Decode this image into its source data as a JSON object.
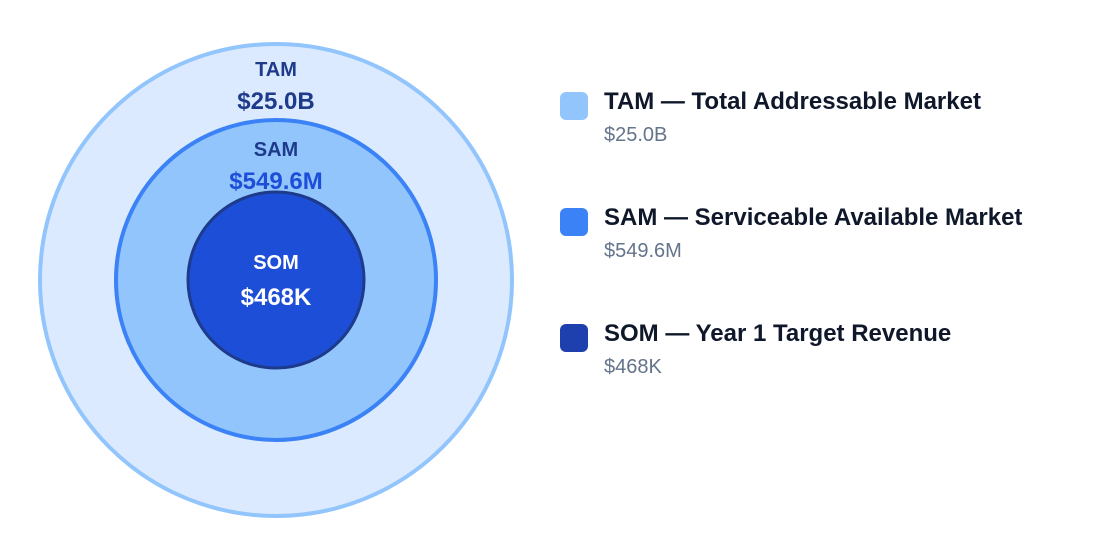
{
  "diagram": {
    "tam": {
      "label": "TAM",
      "value": "$25.0B"
    },
    "sam": {
      "label": "SAM",
      "value": "$549.6M"
    },
    "som": {
      "label": "SOM",
      "value": "$468K"
    }
  },
  "legend": {
    "items": [
      {
        "title": "TAM — Total Addressable Market",
        "value": "$25.0B"
      },
      {
        "title": "SAM — Serviceable Available Market",
        "value": "$549.6M"
      },
      {
        "title": "SOM — Year 1 Target Revenue",
        "value": "$468K"
      }
    ]
  },
  "colors": {
    "tam_fill": "#dbeafe",
    "tam_stroke": "#93c5fd",
    "sam_fill": "#93c5fd",
    "sam_stroke": "#3b82f6",
    "som_fill": "#1d4ed8",
    "som_stroke": "#1e3a8a",
    "label_dark": "#1e3a8a",
    "sam_value": "#1d4ed8",
    "som_text": "#ffffff",
    "swatch_tam": "#93c5fd",
    "swatch_sam": "#3b82f6",
    "swatch_som": "#1e40af"
  }
}
